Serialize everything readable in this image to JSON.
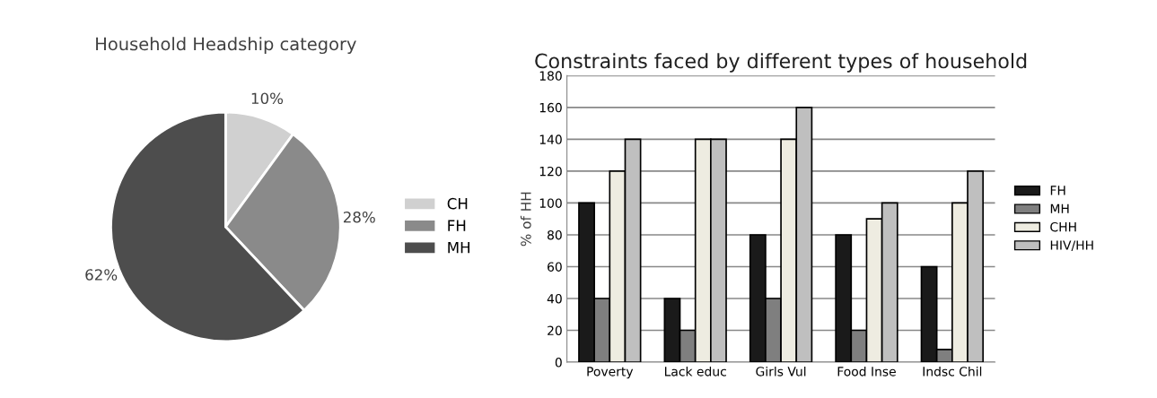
{
  "chart_data": [
    {
      "type": "pie",
      "title": "Household Headship category",
      "categories": [
        "CH",
        "FH",
        "MH"
      ],
      "values": [
        10,
        28,
        62
      ],
      "value_labels": [
        "10%",
        "28%",
        "62%"
      ],
      "colors": [
        "#d0d0d0",
        "#8a8a8a",
        "#4d4d4d"
      ],
      "legend": "right"
    },
    {
      "type": "bar",
      "title": "Constraints faced by different types of household",
      "ylabel": "% of HH",
      "categories": [
        "Poverty",
        "Lack educ",
        "Girls Vul",
        "Food Inse",
        "Indsc Chil"
      ],
      "series": [
        {
          "name": "FH",
          "color": "#1a1a1a",
          "values": [
            100,
            40,
            80,
            80,
            60
          ]
        },
        {
          "name": "MH",
          "color": "#7f7f7f",
          "values": [
            40,
            20,
            40,
            20,
            8
          ]
        },
        {
          "name": "CHH",
          "color": "#eeece1",
          "values": [
            120,
            140,
            140,
            90,
            100
          ]
        },
        {
          "name": "HIV/HH",
          "color": "#bfbfbf",
          "values": [
            140,
            140,
            160,
            100,
            120
          ]
        }
      ],
      "ylim": [
        0,
        180
      ],
      "yticks": [
        0,
        20,
        40,
        60,
        80,
        100,
        120,
        140,
        160,
        180
      ],
      "grid": "y",
      "legend": "right"
    }
  ]
}
